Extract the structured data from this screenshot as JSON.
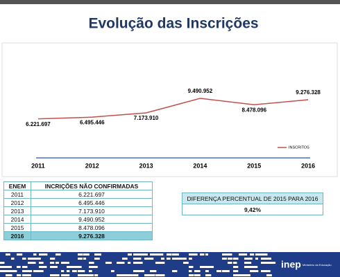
{
  "chart_data": {
    "type": "line",
    "title": "Evolução das Inscrições",
    "categories": [
      "2011",
      "2012",
      "2013",
      "2014",
      "2015",
      "2016"
    ],
    "series": [
      {
        "name": "INSCRITOS",
        "color": "#c0504d",
        "values": [
          6221697,
          6495446,
          7173910,
          9490952,
          8478096,
          9276328
        ],
        "value_labels": [
          "6.221.697",
          "6.495.446",
          "7.173.910",
          "9.490.952",
          "8.478.096",
          "9.276.328"
        ]
      }
    ],
    "ylim": [
      0,
      18000000
    ],
    "legend": "right",
    "axis_color": "#4472c4"
  },
  "table": {
    "header": [
      "ENEM",
      "INCRIÇÕES NÃO CONFIRMADAS"
    ],
    "rows": [
      [
        "2011",
        "6.221.697"
      ],
      [
        "2012",
        "6.495.446"
      ],
      [
        "2013",
        "7.173.910"
      ],
      [
        "2014",
        "9.490.952"
      ],
      [
        "2015",
        "8.478.096"
      ],
      [
        "2016",
        "9.276.328"
      ]
    ]
  },
  "difference": {
    "title": "DIFERENÇA PERCENTUAL DE 2015 PARA 2016",
    "value": "9,42%"
  },
  "footer": {
    "logo": "inep",
    "ministry": "Ministério da Educação"
  }
}
